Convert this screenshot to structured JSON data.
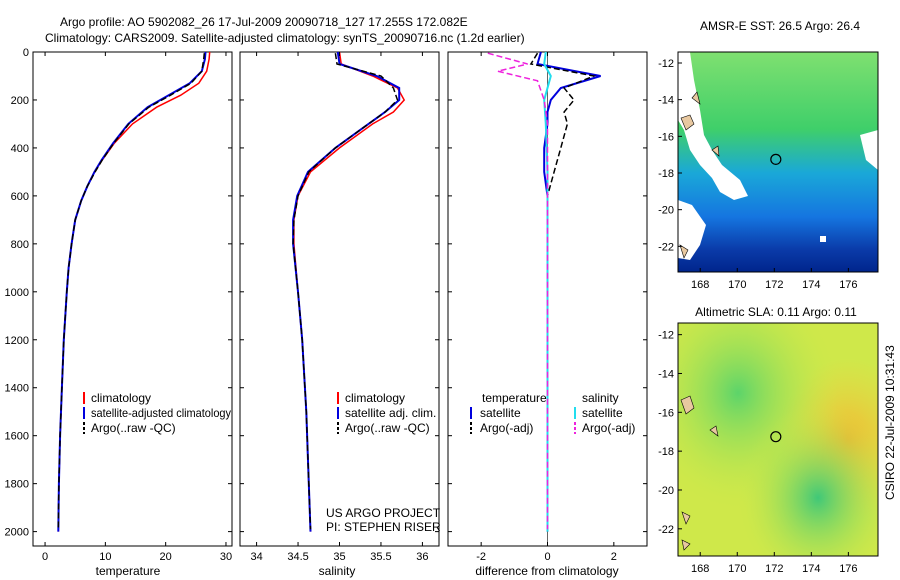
{
  "header": {
    "title_line1": "Argo profile: AO 5902082_26 17-Jul-2009 20090718_127 17.255S 172.082E",
    "title_line2": "Climatology: CARS2009. Satellite-adjusted climatology: synTS_20090716.nc (1.2d earlier)"
  },
  "colors": {
    "climatology": "#ff0000",
    "satellite": "#0000dd",
    "argo": "#000000",
    "salinity_sat": "#22ddee",
    "salinity_argo": "#ee22dd"
  },
  "chart_data": [
    {
      "id": "temperature",
      "type": "line",
      "xlabel": "temperature",
      "xlim": [
        -2,
        31
      ],
      "ylim": [
        2060,
        0
      ],
      "xticks": [
        "0",
        "10",
        "20",
        "30"
      ],
      "yticks": [
        "0",
        "200",
        "400",
        "600",
        "800",
        "1000",
        "1200",
        "1400",
        "1600",
        "1800",
        "2000"
      ],
      "legend": [
        "climatology",
        "satellite-adjusted climatology",
        "Argo(..raw -QC)"
      ],
      "series": [
        {
          "name": "climatology",
          "depth": [
            0,
            30,
            80,
            130,
            180,
            230,
            300,
            380,
            450,
            500,
            560,
            620,
            700,
            800,
            900,
            1000,
            1200,
            1400,
            1600,
            1800,
            2000
          ],
          "values": [
            27.3,
            27.2,
            26.8,
            25.5,
            22.5,
            18.5,
            14.5,
            11.5,
            9.5,
            8.2,
            7.0,
            6.0,
            5.0,
            4.4,
            3.9,
            3.6,
            3.1,
            2.8,
            2.5,
            2.3,
            2.2
          ]
        },
        {
          "name": "satellite",
          "depth": [
            0,
            30,
            80,
            130,
            180,
            230,
            300,
            380,
            450,
            500,
            560,
            620,
            700,
            800,
            900,
            1000,
            1200,
            1400,
            1600,
            1800,
            2000
          ],
          "values": [
            26.6,
            26.5,
            26.0,
            24.0,
            20.5,
            17.0,
            13.8,
            11.3,
            9.4,
            8.2,
            7.0,
            6.0,
            5.0,
            4.4,
            3.9,
            3.6,
            3.1,
            2.8,
            2.5,
            2.3,
            2.2
          ]
        },
        {
          "name": "argo",
          "depth": [
            5,
            30,
            80,
            130,
            180,
            230,
            300,
            380,
            450,
            500,
            560,
            620,
            700,
            800,
            900,
            1000,
            1200,
            1400,
            1600,
            1800,
            1990
          ],
          "values": [
            26.4,
            26.3,
            26.0,
            24.2,
            20.8,
            17.2,
            13.9,
            11.4,
            9.5,
            8.3,
            7.0,
            6.0,
            5.0,
            4.4,
            3.9,
            3.6,
            3.1,
            2.8,
            2.5,
            2.3,
            2.2
          ]
        }
      ]
    },
    {
      "id": "salinity",
      "type": "line",
      "xlabel": "salinity",
      "xlim": [
        33.8,
        36.2
      ],
      "ylim": [
        2060,
        0
      ],
      "xticks": [
        "34",
        "34.5",
        "35",
        "35.5",
        "36"
      ],
      "legend": [
        "climatology",
        "satellite adj. clim.",
        "Argo(..raw -QC)"
      ],
      "annotation": [
        "US ARGO PROJECT",
        "PI: STEPHEN RISER"
      ],
      "series": [
        {
          "name": "climatology",
          "depth": [
            0,
            50,
            100,
            150,
            200,
            250,
            300,
            400,
            500,
            600,
            700,
            800,
            1000,
            1200,
            1500,
            1800,
            2000
          ],
          "values": [
            35.0,
            35.02,
            35.4,
            35.7,
            35.78,
            35.65,
            35.4,
            35.0,
            34.65,
            34.5,
            34.45,
            34.45,
            34.5,
            34.55,
            34.6,
            34.63,
            34.65
          ]
        },
        {
          "name": "satellite",
          "depth": [
            0,
            50,
            100,
            150,
            200,
            250,
            300,
            400,
            500,
            600,
            700,
            800,
            1000,
            1200,
            1500,
            1800,
            2000
          ],
          "values": [
            34.98,
            35.0,
            35.45,
            35.72,
            35.72,
            35.55,
            35.35,
            34.95,
            34.62,
            34.49,
            34.44,
            34.44,
            34.5,
            34.55,
            34.6,
            34.63,
            34.65
          ]
        },
        {
          "name": "argo",
          "depth": [
            5,
            50,
            100,
            150,
            200,
            250,
            300,
            400,
            500,
            600,
            700,
            800,
            1000,
            1200,
            1500,
            1800,
            1990
          ],
          "values": [
            34.95,
            34.97,
            35.5,
            35.65,
            35.7,
            35.55,
            35.35,
            34.95,
            34.63,
            34.5,
            34.45,
            34.44,
            34.5,
            34.55,
            34.6,
            34.63,
            34.65
          ]
        }
      ]
    },
    {
      "id": "difference",
      "type": "line",
      "xlabel": "difference from climatology",
      "xlim": [
        -3,
        3
      ],
      "ylim": [
        2060,
        0
      ],
      "xticks": [
        "-2",
        "0",
        "2"
      ],
      "legend": {
        "temperature_header": "temperature",
        "salinity_header": "salinity",
        "items": [
          "satellite",
          "Argo(-adj)",
          "satellite",
          "Argo(-adj)"
        ]
      },
      "series": [
        {
          "name": "temperature satellite",
          "depth": [
            0,
            50,
            100,
            150,
            200,
            250,
            300,
            400,
            500,
            600,
            800,
            1000,
            1500,
            2000
          ],
          "values": [
            -0.2,
            -0.3,
            1.6,
            0.4,
            0.1,
            0.0,
            0.0,
            -0.1,
            -0.1,
            0.0,
            0.0,
            0.0,
            0.0,
            0.0
          ]
        },
        {
          "name": "temperature argo",
          "depth": [
            5,
            50,
            100,
            150,
            200,
            250,
            300,
            400,
            500,
            600,
            800,
            1000,
            1500,
            1990
          ],
          "values": [
            -0.3,
            -0.5,
            1.4,
            0.5,
            0.8,
            0.5,
            0.6,
            0.4,
            0.2,
            0.0,
            0.0,
            0.0,
            0.0,
            0.0
          ]
        },
        {
          "name": "salinity satellite",
          "depth": [
            0,
            50,
            100,
            150,
            200,
            300,
            500,
            800,
            1000,
            1500,
            2000
          ],
          "values": [
            -0.05,
            -0.1,
            0.1,
            0.0,
            -0.1,
            -0.05,
            0.0,
            0.0,
            0.0,
            0.0,
            0.0
          ]
        },
        {
          "name": "salinity argo",
          "depth": [
            5,
            50,
            80,
            120,
            200,
            300,
            500,
            800,
            1000,
            1500,
            1990
          ],
          "values": [
            -1.8,
            -0.6,
            -1.5,
            -0.3,
            -0.1,
            0.0,
            0.0,
            0.0,
            0.0,
            0.0,
            0.0
          ]
        }
      ]
    }
  ],
  "maps": {
    "sst_title": "AMSR-E SST: 26.5 Argo: 26.4",
    "sla_title": "Altimetric SLA: 0.11 Argo: 0.11",
    "xticks": [
      "168",
      "170",
      "172",
      "174",
      "176"
    ],
    "yticks": [
      "-12",
      "-14",
      "-16",
      "-18",
      "-20",
      "-22"
    ],
    "argo_position": {
      "lon": 172.082,
      "lat": -17.255
    }
  },
  "footer": {
    "credit": "CSIRO 22-Jul-2009 10:31:43"
  }
}
